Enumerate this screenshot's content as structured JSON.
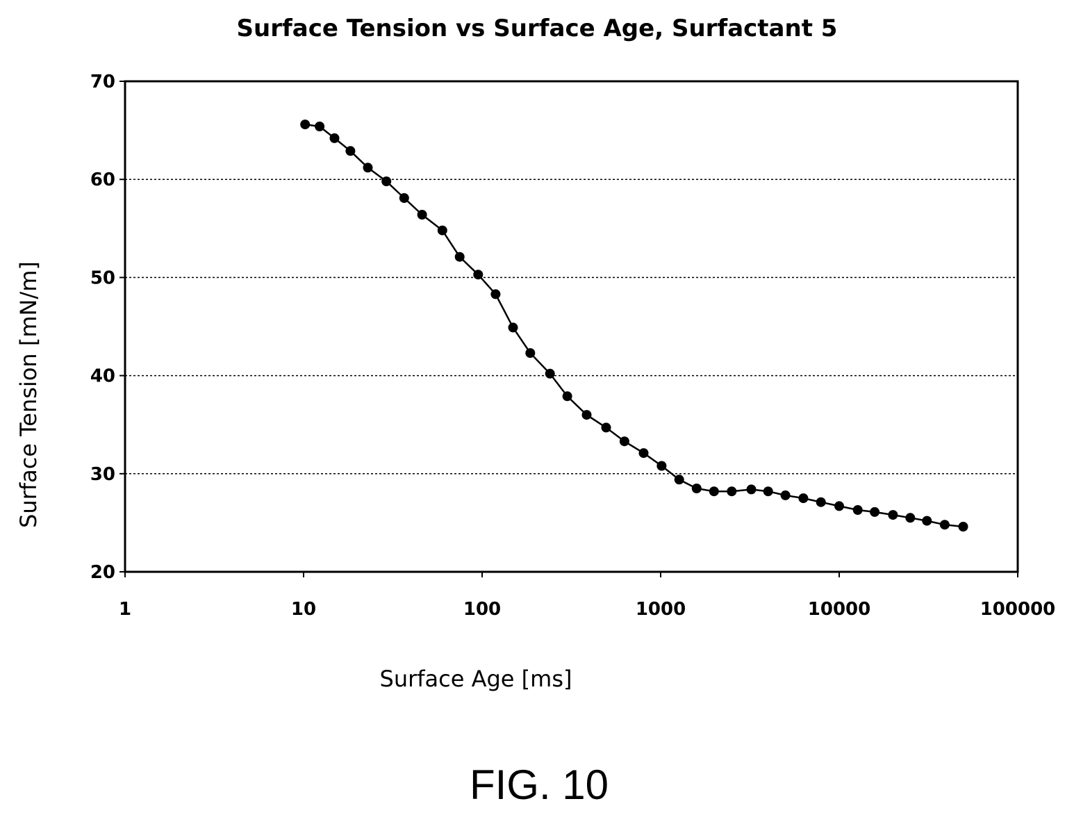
{
  "figure": {
    "caption": "FIG. 10"
  },
  "chart_data": {
    "type": "line",
    "title": "Surface Tension vs Surface Age, Surfactant 5",
    "xlabel": "Surface Age [ms]",
    "ylabel": "Surface Tension [mN/m]",
    "xscale": "log",
    "xlim": [
      1,
      100000
    ],
    "ylim": [
      20,
      70
    ],
    "x_ticks": [
      1,
      10,
      100,
      1000,
      10000,
      100000
    ],
    "x_tick_labels": [
      "1",
      "10",
      "100",
      "1000",
      "10000",
      "100000"
    ],
    "y_ticks": [
      20,
      30,
      40,
      50,
      60,
      70
    ],
    "y_tick_labels": [
      "20",
      "30",
      "40",
      "50",
      "60",
      "70"
    ],
    "grid": "horizontal dotted",
    "legend": "none",
    "line_color": "#000000",
    "marker": "filled circle",
    "series": [
      {
        "x": [
          10.2,
          12.3,
          14.9,
          18.3,
          22.9,
          29.1,
          36.6,
          46.1,
          59.9,
          74.9,
          95,
          119,
          149,
          186,
          240,
          300,
          385,
          495,
          627,
          803,
          1013,
          1270,
          1590,
          1990,
          2500,
          3220,
          4000,
          5000,
          6300,
          7900,
          10000,
          12700,
          15800,
          20000,
          25000,
          31000,
          39000,
          49500
        ],
        "y": [
          65.6,
          65.4,
          64.2,
          62.9,
          61.2,
          59.8,
          58.1,
          56.4,
          54.8,
          52.1,
          50.3,
          48.3,
          44.9,
          42.3,
          40.2,
          37.9,
          36.0,
          34.7,
          33.3,
          32.1,
          30.8,
          29.4,
          28.5,
          28.2,
          28.2,
          28.4,
          28.2,
          27.8,
          27.5,
          27.1,
          26.7,
          26.3,
          26.1,
          25.8,
          25.5,
          25.2,
          24.8,
          24.6
        ]
      }
    ]
  }
}
